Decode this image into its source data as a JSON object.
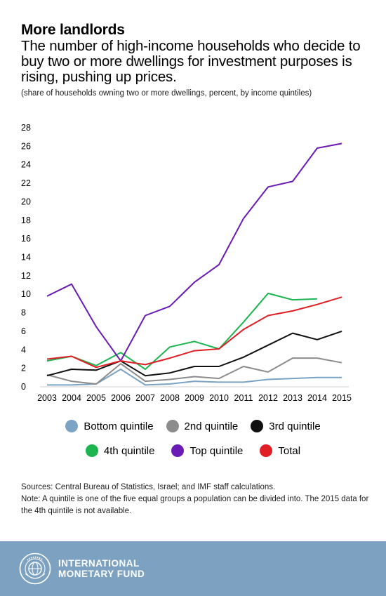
{
  "header": {
    "title": "More landlords",
    "subtitle": "The number of high-income households who decide to buy two or more dwellings for investment purposes is rising, pushing up prices.",
    "unit_note": "(share of households owning two or more dwellings, percent, by income quintiles)"
  },
  "chart_data": {
    "type": "line",
    "x": [
      "2003",
      "2004",
      "2005",
      "2006",
      "2007",
      "2008",
      "2009",
      "2010",
      "2011",
      "2012",
      "2013",
      "2014",
      "2015"
    ],
    "yticks": [
      0,
      2,
      4,
      6,
      8,
      10,
      12,
      14,
      16,
      18,
      20,
      22,
      24,
      26,
      28
    ],
    "ylim": [
      0,
      28
    ],
    "grid": false,
    "legend_position": "bottom",
    "series": [
      {
        "name": "Bottom quintile",
        "color": "#7ba3c4",
        "values": [
          0.2,
          0.2,
          0.3,
          1.9,
          0.2,
          0.3,
          0.6,
          0.5,
          0.5,
          0.8,
          0.9,
          1.0,
          1.0
        ]
      },
      {
        "name": "2nd quintile",
        "color": "#8c8c8c",
        "values": [
          1.3,
          0.6,
          0.3,
          2.5,
          0.6,
          0.8,
          1.1,
          0.9,
          2.2,
          1.6,
          3.1,
          3.1,
          2.6
        ]
      },
      {
        "name": "3rd quintile",
        "color": "#111111",
        "values": [
          1.2,
          1.9,
          1.8,
          2.8,
          1.2,
          1.5,
          2.2,
          2.2,
          3.2,
          4.5,
          5.8,
          5.1,
          6.0
        ]
      },
      {
        "name": "4th quintile",
        "color": "#1cb550",
        "values": [
          2.8,
          3.3,
          2.3,
          3.7,
          1.9,
          4.3,
          4.9,
          4.1,
          7.0,
          10.1,
          9.4,
          9.5,
          null
        ]
      },
      {
        "name": "Top quintile",
        "color": "#6a1bb3",
        "values": [
          9.8,
          11.1,
          6.5,
          2.8,
          7.7,
          8.7,
          11.3,
          13.2,
          18.2,
          21.6,
          22.2,
          25.8,
          26.3
        ]
      },
      {
        "name": "Total",
        "color": "#e01e24",
        "values": [
          3.0,
          3.3,
          2.1,
          2.8,
          2.4,
          3.1,
          3.9,
          4.1,
          6.2,
          7.7,
          8.2,
          8.9,
          9.7
        ]
      }
    ]
  },
  "footnotes": {
    "sources": "Sources: Central Bureau of Statistics, Israel; and IMF staff calculations.",
    "note": "Note: A quintile is one of the five equal groups a population can be divided into. The 2015 data for the 4th quintile is not available."
  },
  "footer": {
    "org_line1": "INTERNATIONAL",
    "org_line2": "MONETARY FUND",
    "background_color": "#7da2c1",
    "logo_icon": "imf-seal-icon"
  }
}
